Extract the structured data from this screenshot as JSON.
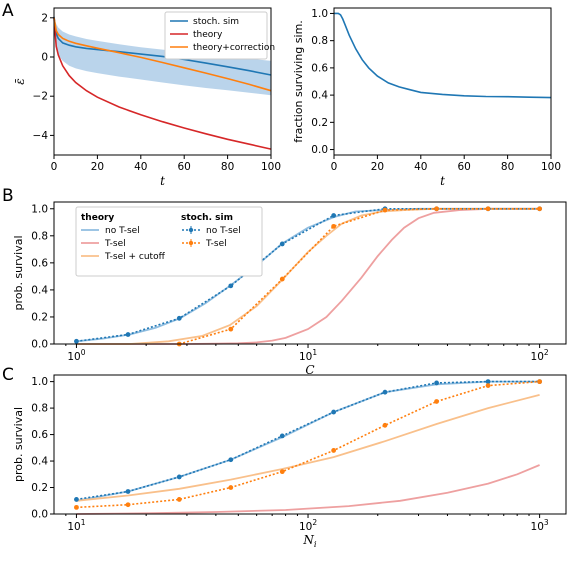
{
  "panels": {
    "A": "A",
    "B": "B",
    "C": "C"
  },
  "colors": {
    "blue": "#1f77b4",
    "red": "#d62728",
    "orange": "#ff7f0e",
    "band": "#aecde8",
    "light_blue": "#8fbde0",
    "light_red": "#eea0a0",
    "light_orange": "#f9c08b"
  },
  "chart_data": [
    {
      "id": "A1",
      "type": "line",
      "xlabel": "t",
      "ylabel": "ε̄",
      "xlim": [
        0,
        100
      ],
      "ylim": [
        -5,
        2.5
      ],
      "xticks": [
        0,
        20,
        40,
        60,
        80,
        100
      ],
      "yticks": [
        -4,
        -2,
        0,
        2
      ],
      "legend": {
        "placement": "top-right",
        "entries": [
          "stoch. sim",
          "theory",
          "theory+correction"
        ]
      },
      "band": {
        "x": [
          0,
          1,
          2,
          4,
          7,
          10,
          15,
          20,
          30,
          40,
          50,
          60,
          70,
          80,
          90,
          100
        ],
        "upper": [
          2.1,
          1.7,
          1.5,
          1.3,
          1.15,
          1.05,
          0.92,
          0.82,
          0.65,
          0.5,
          0.38,
          0.26,
          0.14,
          0.03,
          -0.08,
          -0.2
        ],
        "lower": [
          2.0,
          0.4,
          0.1,
          -0.2,
          -0.45,
          -0.58,
          -0.72,
          -0.82,
          -1.0,
          -1.15,
          -1.3,
          -1.45,
          -1.58,
          -1.7,
          -1.82,
          -1.95
        ]
      },
      "series": [
        {
          "name": "stoch. sim",
          "color": "blue",
          "x": [
            0,
            1,
            2,
            4,
            7,
            10,
            15,
            20,
            30,
            40,
            50,
            60,
            70,
            80,
            90,
            100
          ],
          "y": [
            2.05,
            1.2,
            0.95,
            0.72,
            0.6,
            0.52,
            0.44,
            0.38,
            0.27,
            0.15,
            0.03,
            -0.13,
            -0.31,
            -0.5,
            -0.7,
            -0.92
          ]
        },
        {
          "name": "theory",
          "color": "red",
          "x": [
            0,
            1,
            2,
            4,
            7,
            10,
            15,
            20,
            30,
            40,
            50,
            60,
            70,
            80,
            90,
            100
          ],
          "y": [
            2.0,
            0.55,
            0.1,
            -0.45,
            -0.95,
            -1.3,
            -1.72,
            -2.05,
            -2.55,
            -2.95,
            -3.3,
            -3.62,
            -3.92,
            -4.2,
            -4.45,
            -4.7
          ]
        },
        {
          "name": "theory+correction",
          "color": "orange",
          "x": [
            0,
            1,
            2,
            4,
            7,
            10,
            15,
            20,
            30,
            40,
            50,
            60,
            70,
            80,
            90,
            100
          ],
          "y": [
            2.0,
            1.35,
            1.15,
            0.95,
            0.8,
            0.7,
            0.57,
            0.45,
            0.22,
            -0.02,
            -0.28,
            -0.55,
            -0.82,
            -1.1,
            -1.4,
            -1.72
          ]
        }
      ]
    },
    {
      "id": "A2",
      "type": "line",
      "xlabel": "t",
      "ylabel": "fraction surviving sim.",
      "xlim": [
        0,
        100
      ],
      "ylim": [
        -0.04,
        1.04
      ],
      "xticks": [
        0,
        20,
        40,
        60,
        80,
        100
      ],
      "yticks": [
        0.0,
        0.2,
        0.4,
        0.6,
        0.8,
        1.0
      ],
      "series": [
        {
          "name": "",
          "color": "blue",
          "x": [
            0,
            2,
            3,
            4,
            5,
            7,
            10,
            13,
            16,
            20,
            25,
            30,
            35,
            40,
            50,
            60,
            70,
            80,
            90,
            100
          ],
          "y": [
            1.0,
            1.0,
            0.99,
            0.96,
            0.92,
            0.84,
            0.74,
            0.66,
            0.6,
            0.54,
            0.49,
            0.46,
            0.44,
            0.42,
            0.405,
            0.395,
            0.39,
            0.388,
            0.385,
            0.382
          ]
        }
      ]
    },
    {
      "id": "B",
      "type": "line",
      "xscale": "log",
      "xlabel": "C",
      "ylabel": "prob. survival",
      "xlim": [
        0.8,
        130
      ],
      "ylim": [
        0,
        1.05
      ],
      "xticks": [
        1,
        10,
        100
      ],
      "xticklabels": [
        "10",
        "10",
        "10"
      ],
      "xtickexp": [
        "0",
        "1",
        "2"
      ],
      "yticks": [
        0.0,
        0.2,
        0.4,
        0.6,
        0.8,
        1.0
      ],
      "legend": {
        "placement": "top-left",
        "theory_title": "theory",
        "theory": [
          "no T-sel",
          "T-sel",
          "T-sel + cutoff"
        ],
        "sim_title": "stoch. sim",
        "sim": [
          "no T-sel",
          "T-sel"
        ]
      },
      "theory": [
        {
          "name": "no T-sel",
          "color": "light_blue",
          "x": [
            1,
            1.3,
            1.7,
            2.2,
            2.8,
            3.6,
            4.6,
            6,
            7.7,
            10,
            13,
            16,
            21,
            30,
            40,
            60,
            100
          ],
          "y": [
            0.02,
            0.04,
            0.07,
            0.12,
            0.19,
            0.3,
            0.43,
            0.58,
            0.74,
            0.86,
            0.94,
            0.98,
            0.99,
            1.0,
            1.0,
            1.0,
            1.0
          ]
        },
        {
          "name": "T-sel",
          "color": "light_red",
          "x": [
            1,
            2,
            3,
            4,
            5,
            6,
            7,
            8,
            10,
            12,
            14,
            17,
            20,
            23,
            26,
            30,
            35,
            45,
            60,
            100
          ],
          "y": [
            0.0,
            0.0,
            0.0,
            0.002,
            0.005,
            0.012,
            0.025,
            0.045,
            0.11,
            0.2,
            0.32,
            0.49,
            0.65,
            0.77,
            0.86,
            0.93,
            0.97,
            0.99,
            1.0,
            1.0
          ]
        },
        {
          "name": "T-sel + cutoff",
          "color": "light_orange",
          "x": [
            1,
            1.7,
            2.5,
            3.5,
            4.6,
            6,
            7.7,
            10,
            12,
            14,
            17,
            21,
            26,
            35,
            60,
            100
          ],
          "y": [
            0.0,
            0.0,
            0.02,
            0.06,
            0.14,
            0.28,
            0.47,
            0.68,
            0.8,
            0.89,
            0.95,
            0.98,
            0.99,
            1.0,
            1.0,
            1.0
          ]
        }
      ],
      "sim": [
        {
          "name": "no T-sel",
          "color": "blue",
          "x": [
            1,
            1.67,
            2.78,
            4.64,
            7.74,
            12.9,
            21.5,
            35.9,
            59.9,
            100
          ],
          "y": [
            0.02,
            0.07,
            0.19,
            0.43,
            0.74,
            0.95,
            1.0,
            1.0,
            1.0,
            1.0
          ]
        },
        {
          "name": "T-sel",
          "color": "orange",
          "x": [
            2.78,
            4.64,
            7.74,
            12.9,
            21.5,
            35.9,
            59.9,
            100
          ],
          "y": [
            0.0,
            0.11,
            0.48,
            0.87,
            0.99,
            1.0,
            1.0,
            1.0
          ]
        }
      ]
    },
    {
      "id": "C",
      "type": "line",
      "xscale": "log",
      "xlabel": "N_i",
      "ylabel": "prob. survival",
      "xlim": [
        8,
        1300
      ],
      "ylim": [
        0,
        1.05
      ],
      "xticks": [
        10,
        100,
        1000
      ],
      "xticklabels": [
        "10",
        "10",
        "10"
      ],
      "xtickexp": [
        "1",
        "2",
        "3"
      ],
      "yticks": [
        0.0,
        0.2,
        0.4,
        0.6,
        0.8,
        1.0
      ],
      "theory": [
        {
          "name": "no T-sel",
          "color": "light_blue",
          "x": [
            10,
            16.7,
            27.8,
            46.4,
            77.4,
            129,
            215,
            359,
            599,
            1000
          ],
          "y": [
            0.1,
            0.17,
            0.28,
            0.41,
            0.58,
            0.77,
            0.92,
            0.98,
            1.0,
            1.0
          ]
        },
        {
          "name": "T-sel",
          "color": "light_red",
          "x": [
            10,
            20,
            40,
            80,
            150,
            250,
            400,
            600,
            800,
            1000
          ],
          "y": [
            0.0,
            0.005,
            0.015,
            0.03,
            0.06,
            0.1,
            0.16,
            0.23,
            0.3,
            0.37
          ]
        },
        {
          "name": "T-sel + cutoff",
          "color": "light_orange",
          "x": [
            10,
            16.7,
            27.8,
            46.4,
            77.4,
            129,
            215,
            359,
            599,
            1000
          ],
          "y": [
            0.1,
            0.14,
            0.19,
            0.26,
            0.34,
            0.43,
            0.55,
            0.68,
            0.8,
            0.9
          ]
        }
      ],
      "sim": [
        {
          "name": "no T-sel",
          "color": "blue",
          "x": [
            10,
            16.7,
            27.8,
            46.4,
            77.4,
            129,
            215,
            359,
            599,
            1000
          ],
          "y": [
            0.11,
            0.17,
            0.28,
            0.41,
            0.59,
            0.77,
            0.92,
            0.99,
            1.0,
            1.0
          ]
        },
        {
          "name": "T-sel",
          "color": "orange",
          "x": [
            10,
            16.7,
            27.8,
            46.4,
            77.4,
            129,
            215,
            359,
            599,
            1000
          ],
          "y": [
            0.05,
            0.07,
            0.11,
            0.2,
            0.32,
            0.48,
            0.67,
            0.85,
            0.97,
            1.0
          ]
        }
      ]
    }
  ]
}
